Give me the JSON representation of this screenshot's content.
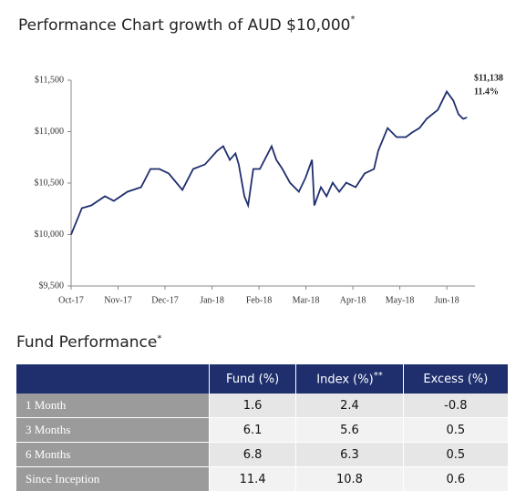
{
  "chart_data": {
    "type": "line",
    "title": "Performance Chart growth of AUD $10,000",
    "title_note": "*",
    "series": [
      {
        "name": "Growth of AUD $10,000",
        "color": "#1f2f6e",
        "x": [
          0,
          0.23,
          0.43,
          0.72,
          0.91,
          1.2,
          1.49,
          1.69,
          1.88,
          2.08,
          2.37,
          2.6,
          2.85,
          3.11,
          3.24,
          3.38,
          3.5,
          3.57,
          3.69,
          3.77,
          3.88,
          4.02,
          4.27,
          4.37,
          4.5,
          4.66,
          4.85,
          4.99,
          5.13,
          5.18,
          5.32,
          5.44,
          5.57,
          5.71,
          5.86,
          6.06,
          6.25,
          6.45,
          6.54,
          6.74,
          6.93,
          7.13,
          7.26,
          7.42,
          7.57,
          7.81,
          8.0,
          8.14,
          8.25,
          8.35,
          8.43
        ],
        "values": [
          10000,
          10257,
          10283,
          10372,
          10327,
          10416,
          10460,
          10637,
          10637,
          10593,
          10434,
          10637,
          10681,
          10814,
          10858,
          10726,
          10788,
          10681,
          10372,
          10283,
          10637,
          10637,
          10858,
          10726,
          10637,
          10504,
          10416,
          10549,
          10726,
          10283,
          10460,
          10372,
          10504,
          10416,
          10504,
          10460,
          10593,
          10637,
          10814,
          11035,
          10947,
          10947,
          10991,
          11035,
          11124,
          11212,
          11389,
          11301,
          11168,
          11124,
          11138
        ]
      }
    ],
    "annotations": [
      "$11,138",
      "11.4%"
    ],
    "xlim": [
      0,
      8.6
    ],
    "xticks": [
      {
        "value": 0,
        "label": "Oct-17"
      },
      {
        "value": 1,
        "label": "Nov-17"
      },
      {
        "value": 2,
        "label": "Dec-17"
      },
      {
        "value": 3,
        "label": "Jan-18"
      },
      {
        "value": 4,
        "label": "Feb-18"
      },
      {
        "value": 5,
        "label": "Mar-18"
      },
      {
        "value": 6,
        "label": "Apr-18"
      },
      {
        "value": 7,
        "label": "May-18"
      },
      {
        "value": 8,
        "label": "Jun-18"
      }
    ],
    "ylim": [
      9500,
      11500
    ],
    "yticks": [
      {
        "value": 9500,
        "label": "$9,500"
      },
      {
        "value": 10000,
        "label": "$10,000"
      },
      {
        "value": 10500,
        "label": "$10,500"
      },
      {
        "value": 11000,
        "label": "$11,000"
      },
      {
        "value": 11500,
        "label": "$11,500"
      }
    ],
    "grid": false
  },
  "table": {
    "title": "Fund Performance",
    "title_note": "*",
    "header": [
      "Fund (%)",
      "Index (%)",
      "Excess (%)"
    ],
    "header_note": "**",
    "rows": [
      [
        "1 Month",
        "1.6",
        "2.4",
        "-0.8"
      ],
      [
        "3 Months",
        "6.1",
        "5.6",
        "0.5"
      ],
      [
        "6 Months",
        "6.8",
        "6.3",
        "0.5"
      ],
      [
        "Since Inception",
        "11.4",
        "10.8",
        "0.6"
      ]
    ]
  }
}
